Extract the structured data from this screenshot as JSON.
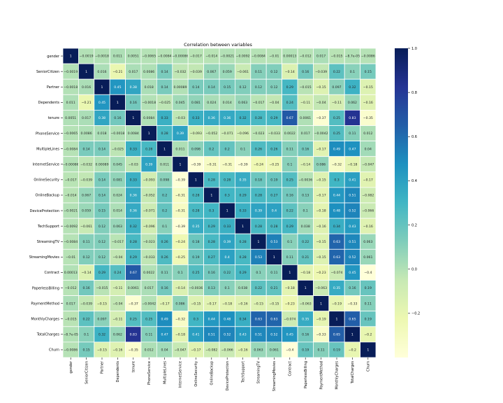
{
  "chart_data": {
    "type": "heatmap",
    "title": "Correlation between variables",
    "labels": [
      "gender",
      "SeniorCitizen",
      "Partner",
      "Dependents",
      "tenure",
      "PhoneService",
      "MultipleLines",
      "InternetService",
      "OnlineSecurity",
      "OnlineBackup",
      "DeviceProtection",
      "TechSupport",
      "StreamingTV",
      "StreamingMovies",
      "Contract",
      "PaperlessBilling",
      "PaymentMethod",
      "MonthlyCharges",
      "TotalCharges",
      "Churn"
    ],
    "matrix": [
      [
        1,
        -0.0019,
        -0.0018,
        0.011,
        0.0051,
        -0.0065,
        -0.0084,
        -0.00086,
        -0.017,
        -0.014,
        -0.0021,
        -0.0092,
        -0.0084,
        -0.01,
        0.00013,
        -0.012,
        0.017,
        -0.015,
        -8.7e-05,
        -0.0086
      ],
      [
        -0.0019,
        1,
        0.016,
        -0.21,
        0.017,
        0.0086,
        0.14,
        -0.032,
        -0.039,
        0.067,
        0.059,
        -0.061,
        0.11,
        0.12,
        -0.14,
        0.16,
        -0.039,
        0.22,
        0.1,
        0.15
      ],
      [
        -0.0018,
        0.016,
        1,
        0.45,
        0.38,
        0.018,
        0.14,
        0.00089,
        0.14,
        0.14,
        0.15,
        0.12,
        0.12,
        0.12,
        0.29,
        -0.015,
        -0.15,
        0.097,
        0.32,
        -0.15
      ],
      [
        0.011,
        -0.21,
        0.45,
        1,
        0.16,
        -0.0018,
        -0.025,
        0.045,
        0.081,
        0.024,
        0.014,
        0.063,
        -0.017,
        -0.04,
        0.24,
        -0.11,
        -0.04,
        -0.11,
        0.062,
        -0.16
      ],
      [
        0.0051,
        0.017,
        0.38,
        0.16,
        1,
        0.0084,
        0.33,
        -0.03,
        0.33,
        0.36,
        0.36,
        0.32,
        0.28,
        0.29,
        0.67,
        0.0061,
        -0.37,
        0.25,
        0.83,
        -0.35
      ],
      [
        -0.0065,
        0.0086,
        0.018,
        -0.0018,
        0.0084,
        1,
        0.28,
        0.39,
        -0.093,
        -0.052,
        -0.071,
        -0.096,
        -0.023,
        -0.033,
        0.0022,
        0.017,
        -0.0042,
        0.25,
        0.11,
        0.012
      ],
      [
        -0.0084,
        0.14,
        0.14,
        -0.025,
        0.33,
        0.28,
        1,
        0.011,
        0.098,
        0.2,
        0.2,
        0.1,
        0.26,
        0.26,
        0.11,
        0.16,
        -0.17,
        0.49,
        0.47,
        0.04
      ],
      [
        -0.00086,
        -0.032,
        0.00089,
        0.045,
        -0.03,
        0.39,
        0.011,
        1,
        -0.39,
        -0.31,
        -0.31,
        -0.39,
        -0.24,
        -0.25,
        0.1,
        -0.14,
        0.086,
        -0.32,
        -0.18,
        -0.047
      ],
      [
        -0.017,
        -0.039,
        0.14,
        0.081,
        0.33,
        -0.093,
        0.098,
        -0.39,
        1,
        0.28,
        0.28,
        0.35,
        0.18,
        0.19,
        0.25,
        -0.0036,
        -0.15,
        0.3,
        0.41,
        -0.17
      ],
      [
        -0.014,
        0.067,
        0.14,
        0.024,
        0.36,
        -0.052,
        0.2,
        -0.31,
        0.28,
        1,
        0.3,
        0.29,
        0.28,
        0.27,
        0.16,
        0.13,
        -0.17,
        0.44,
        0.51,
        -0.082
      ],
      [
        -0.0021,
        0.059,
        0.15,
        0.014,
        0.36,
        -0.071,
        0.2,
        -0.31,
        0.28,
        0.3,
        1,
        0.33,
        0.39,
        0.4,
        0.22,
        0.1,
        -0.18,
        0.48,
        0.52,
        -0.066
      ],
      [
        -0.0092,
        -0.061,
        0.12,
        0.063,
        0.32,
        -0.096,
        0.1,
        -0.39,
        0.35,
        0.29,
        0.33,
        1,
        0.28,
        0.28,
        0.29,
        0.038,
        -0.16,
        0.34,
        0.43,
        -0.16
      ],
      [
        -0.0084,
        0.11,
        0.12,
        -0.017,
        0.28,
        -0.023,
        0.26,
        -0.24,
        0.18,
        0.28,
        0.39,
        0.28,
        1,
        0.53,
        0.1,
        0.22,
        -0.15,
        0.63,
        0.51,
        0.063
      ],
      [
        -0.01,
        0.12,
        0.12,
        -0.04,
        0.29,
        -0.033,
        0.26,
        -0.25,
        0.19,
        0.27,
        0.4,
        0.28,
        0.53,
        1,
        0.11,
        0.21,
        -0.15,
        0.63,
        0.52,
        0.061
      ],
      [
        0.00013,
        -0.14,
        0.29,
        0.24,
        0.67,
        0.0022,
        0.11,
        0.1,
        0.25,
        0.16,
        0.22,
        0.29,
        0.1,
        0.11,
        1,
        -0.18,
        -0.23,
        -0.074,
        0.45,
        -0.4
      ],
      [
        -0.012,
        0.16,
        -0.015,
        -0.11,
        0.0061,
        0.017,
        0.16,
        -0.14,
        -0.0036,
        0.13,
        0.1,
        0.038,
        0.22,
        0.21,
        -0.18,
        1,
        -0.063,
        0.35,
        0.16,
        0.19
      ],
      [
        0.017,
        -0.039,
        -0.15,
        -0.04,
        -0.37,
        -0.0042,
        -0.17,
        0.086,
        -0.15,
        -0.17,
        -0.18,
        -0.16,
        -0.15,
        -0.15,
        -0.23,
        -0.063,
        1,
        -0.19,
        -0.33,
        0.11
      ],
      [
        -0.015,
        0.22,
        0.097,
        -0.11,
        0.25,
        0.25,
        0.49,
        -0.32,
        0.3,
        0.44,
        0.48,
        0.34,
        0.63,
        0.63,
        -0.074,
        0.35,
        -0.19,
        1,
        0.65,
        0.19
      ],
      [
        -8.7e-05,
        0.1,
        0.32,
        0.062,
        0.83,
        0.11,
        0.47,
        -0.18,
        0.41,
        0.51,
        0.52,
        0.43,
        0.51,
        0.52,
        0.45,
        0.16,
        -0.33,
        0.65,
        1,
        -0.2
      ],
      [
        -0.0086,
        0.15,
        -0.15,
        -0.16,
        -0.35,
        0.012,
        0.04,
        -0.047,
        -0.17,
        -0.082,
        -0.066,
        -0.16,
        0.063,
        0.061,
        -0.4,
        0.19,
        0.11,
        0.19,
        -0.2,
        1
      ]
    ],
    "colorbar": {
      "vmin": -0.4,
      "vmax": 1,
      "ticks": [
        1.0,
        0.8,
        0.6,
        0.4,
        0.2,
        0.0,
        -0.2
      ],
      "tick_labels": [
        "1.0",
        "0.8",
        "0.6",
        "0.4",
        "0.2",
        "0.0",
        "−0.2"
      ]
    },
    "colormap": [
      "#ffffd9",
      "#edf8b1",
      "#c7e9b4",
      "#7fcdbb",
      "#41b6c4",
      "#1d91c0",
      "#225ea8",
      "#253494",
      "#081d58"
    ],
    "annotated": true,
    "grid": true
  }
}
